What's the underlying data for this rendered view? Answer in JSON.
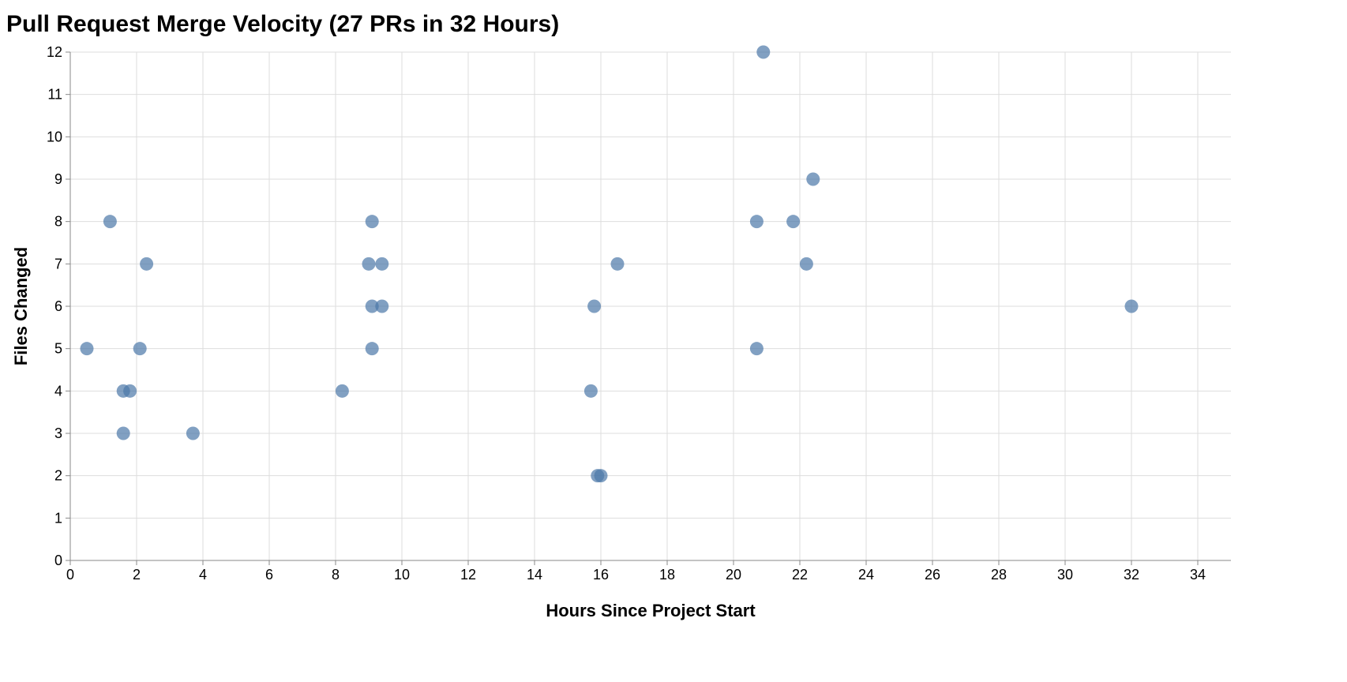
{
  "chart_data": {
    "type": "scatter",
    "title": "Pull Request Merge Velocity (27 PRs in 32 Hours)",
    "xlabel": "Hours Since Project Start",
    "ylabel": "Files Changed",
    "xlim": [
      0,
      35
    ],
    "ylim": [
      0,
      12
    ],
    "x_ticks": [
      0,
      2,
      4,
      6,
      8,
      10,
      12,
      14,
      16,
      18,
      20,
      22,
      24,
      26,
      28,
      30,
      32,
      34
    ],
    "y_ticks": [
      0,
      1,
      2,
      3,
      4,
      5,
      6,
      7,
      8,
      9,
      10,
      11,
      12
    ],
    "grid": true,
    "color": "#4c78a8",
    "points": [
      {
        "x": 20.9,
        "y": 12
      },
      {
        "x": 22.4,
        "y": 9
      },
      {
        "x": 1.2,
        "y": 8
      },
      {
        "x": 9.1,
        "y": 8
      },
      {
        "x": 20.7,
        "y": 8
      },
      {
        "x": 21.8,
        "y": 8
      },
      {
        "x": 2.3,
        "y": 7
      },
      {
        "x": 9.0,
        "y": 7
      },
      {
        "x": 9.4,
        "y": 7
      },
      {
        "x": 16.5,
        "y": 7
      },
      {
        "x": 22.2,
        "y": 7
      },
      {
        "x": 9.1,
        "y": 6
      },
      {
        "x": 9.4,
        "y": 6
      },
      {
        "x": 15.8,
        "y": 6
      },
      {
        "x": 32.0,
        "y": 6
      },
      {
        "x": 0.5,
        "y": 5
      },
      {
        "x": 2.1,
        "y": 5
      },
      {
        "x": 9.1,
        "y": 5
      },
      {
        "x": 20.7,
        "y": 5
      },
      {
        "x": 1.6,
        "y": 4
      },
      {
        "x": 1.8,
        "y": 4
      },
      {
        "x": 8.2,
        "y": 4
      },
      {
        "x": 15.7,
        "y": 4
      },
      {
        "x": 1.6,
        "y": 3
      },
      {
        "x": 3.7,
        "y": 3
      },
      {
        "x": 15.9,
        "y": 2
      },
      {
        "x": 16.0,
        "y": 2
      }
    ]
  }
}
